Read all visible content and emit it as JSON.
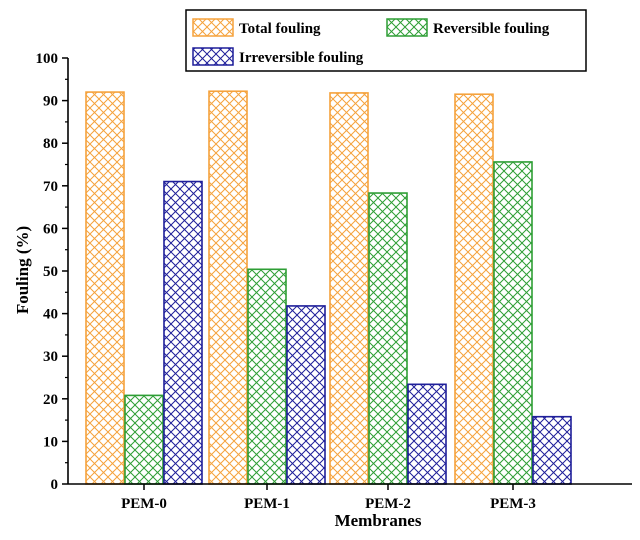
{
  "chart_data": {
    "type": "bar",
    "title": "",
    "xlabel": "Membranes",
    "ylabel": "Fouling (%)",
    "categories": [
      "PEM-0",
      "PEM-1",
      "PEM-2",
      "PEM-3"
    ],
    "ylim": [
      0,
      100
    ],
    "yticks": [
      0,
      10,
      20,
      30,
      40,
      50,
      60,
      70,
      80,
      90,
      100
    ],
    "legend_position": "top",
    "grid": false,
    "series": [
      {
        "name": "Total fouling",
        "values": [
          92,
          92.2,
          91.8,
          91.5
        ],
        "color": "#f5a23c",
        "pattern": "crosshatch"
      },
      {
        "name": "Reversible fouling",
        "values": [
          20.8,
          50.4,
          68.3,
          75.6
        ],
        "color": "#2e9e35",
        "pattern": "crosshatch"
      },
      {
        "name": "Irreversible fouling",
        "values": [
          71,
          41.8,
          23.4,
          15.8
        ],
        "color": "#1f1f9a",
        "pattern": "crosshatch"
      }
    ]
  }
}
